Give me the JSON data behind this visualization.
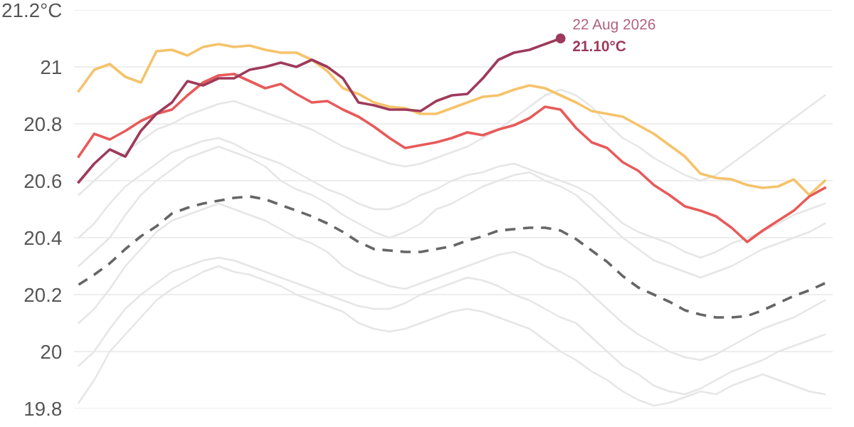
{
  "chart_data": {
    "type": "line",
    "categories": [
      null,
      null,
      null,
      null,
      null,
      null,
      null,
      null,
      null,
      null,
      null,
      null,
      null,
      null,
      null,
      null,
      null,
      null,
      null,
      null,
      null,
      null,
      null,
      null,
      null,
      null,
      null,
      null,
      null,
      null,
      null,
      null,
      null,
      null,
      null,
      null,
      null,
      null,
      null,
      null,
      null,
      null,
      null,
      null,
      null,
      null,
      null,
      null,
      null
    ],
    "series": [
      {
        "color": "#e6e6e6",
        "values": [
          20.55,
          20.6,
          20.65,
          20.7,
          20.74,
          20.78,
          20.8,
          20.83,
          20.85,
          20.87,
          20.88,
          20.86,
          20.84,
          20.82,
          20.8,
          20.78,
          20.75,
          20.72,
          20.7,
          20.68,
          20.66,
          20.65,
          20.66,
          20.68,
          20.7,
          20.72,
          20.75,
          20.78,
          20.82,
          20.86,
          20.9,
          20.92,
          20.9,
          20.86,
          20.8,
          20.75,
          20.72,
          20.68,
          20.65,
          20.62,
          20.6,
          20.62,
          20.66,
          20.7,
          20.74,
          20.78,
          20.82,
          20.86,
          20.9
        ]
      },
      {
        "color": "#e6e6e6",
        "values": [
          20.4,
          20.45,
          20.52,
          20.58,
          20.62,
          20.66,
          20.7,
          20.72,
          20.74,
          20.75,
          20.73,
          20.7,
          20.68,
          20.66,
          20.63,
          20.6,
          20.57,
          20.55,
          20.52,
          20.5,
          20.5,
          20.52,
          20.55,
          20.57,
          20.6,
          20.62,
          20.63,
          20.65,
          20.66,
          20.64,
          20.62,
          20.6,
          20.58,
          20.55,
          20.5,
          20.45,
          20.42,
          20.4,
          20.38,
          20.35,
          20.33,
          20.35,
          20.38,
          20.4,
          20.42,
          20.45,
          20.48,
          20.5,
          20.52
        ]
      },
      {
        "color": "#e6e6e6",
        "values": [
          20.3,
          20.35,
          20.4,
          20.48,
          20.55,
          20.6,
          20.64,
          20.68,
          20.7,
          20.72,
          20.7,
          20.68,
          20.65,
          20.6,
          20.57,
          20.55,
          20.52,
          20.48,
          20.45,
          20.42,
          20.4,
          20.42,
          20.45,
          20.5,
          20.52,
          20.55,
          20.58,
          20.6,
          20.62,
          20.63,
          20.6,
          20.58,
          20.55,
          20.5,
          20.45,
          20.4,
          20.36,
          20.32,
          20.3,
          20.28,
          20.26,
          20.28,
          20.3,
          20.33,
          20.36,
          20.38,
          20.4,
          20.42,
          20.45
        ]
      },
      {
        "color": "#e6e6e6",
        "values": [
          20.1,
          20.15,
          20.22,
          20.3,
          20.36,
          20.42,
          20.46,
          20.48,
          20.5,
          20.52,
          20.5,
          20.48,
          20.46,
          20.43,
          20.4,
          20.38,
          20.35,
          20.3,
          20.27,
          20.25,
          20.23,
          20.22,
          20.24,
          20.26,
          20.28,
          20.3,
          20.32,
          20.34,
          20.35,
          20.33,
          20.3,
          20.28,
          20.25,
          20.2,
          20.15,
          20.1,
          20.06,
          20.03,
          20.0,
          19.98,
          19.97,
          19.99,
          20.02,
          20.05,
          20.08,
          20.1,
          20.12,
          20.15,
          20.18
        ]
      },
      {
        "color": "#e6e6e6",
        "values": [
          19.95,
          20.0,
          20.08,
          20.15,
          20.2,
          20.24,
          20.28,
          20.3,
          20.32,
          20.33,
          20.32,
          20.3,
          20.28,
          20.26,
          20.24,
          20.22,
          20.2,
          20.18,
          20.16,
          20.15,
          20.15,
          20.17,
          20.2,
          20.22,
          20.24,
          20.26,
          20.25,
          20.23,
          20.2,
          20.18,
          20.15,
          20.12,
          20.1,
          20.05,
          20.0,
          19.95,
          19.92,
          19.88,
          19.86,
          19.85,
          19.87,
          19.9,
          19.93,
          19.95,
          19.97,
          20.0,
          20.02,
          20.04,
          20.06
        ]
      },
      {
        "color": "#e6e6e6",
        "values": [
          19.82,
          19.9,
          20.0,
          20.06,
          20.12,
          20.18,
          20.22,
          20.25,
          20.28,
          20.3,
          20.28,
          20.27,
          20.25,
          20.23,
          20.2,
          20.18,
          20.16,
          20.14,
          20.1,
          20.08,
          20.07,
          20.08,
          20.1,
          20.12,
          20.14,
          20.15,
          20.14,
          20.12,
          20.1,
          20.08,
          20.04,
          20.0,
          19.97,
          19.93,
          19.9,
          19.86,
          19.83,
          19.81,
          19.82,
          19.84,
          19.86,
          19.85,
          19.88,
          19.9,
          19.92,
          19.9,
          19.88,
          19.86,
          19.85
        ]
      },
      {
        "color": "#666666",
        "line_style": "dashed",
        "values": [
          20.235,
          20.27,
          20.31,
          20.36,
          20.405,
          20.44,
          20.485,
          20.505,
          20.52,
          20.53,
          20.54,
          20.545,
          20.535,
          20.515,
          20.495,
          20.475,
          20.45,
          20.42,
          20.385,
          20.36,
          20.355,
          20.35,
          20.35,
          20.36,
          20.37,
          20.39,
          20.405,
          20.425,
          20.43,
          20.435,
          20.435,
          20.425,
          20.395,
          20.355,
          20.315,
          20.265,
          20.225,
          20.2,
          20.175,
          20.145,
          20.13,
          20.12,
          20.12,
          20.125,
          20.145,
          20.17,
          20.195,
          20.215,
          20.24
        ]
      },
      {
        "color": "#f5c36b",
        "values": [
          20.915,
          20.99,
          21.01,
          20.965,
          20.945,
          21.055,
          21.06,
          21.04,
          21.07,
          21.08,
          21.07,
          21.075,
          21.06,
          21.05,
          21.05,
          21.025,
          20.985,
          20.925,
          20.905,
          20.875,
          20.86,
          20.855,
          20.835,
          20.835,
          20.855,
          20.875,
          20.895,
          20.9,
          20.92,
          20.935,
          20.925,
          20.9,
          20.875,
          20.845,
          20.835,
          20.825,
          20.795,
          20.765,
          20.725,
          20.685,
          20.625,
          20.61,
          20.605,
          20.585,
          20.575,
          20.58,
          20.605,
          20.55,
          20.6
        ]
      },
      {
        "color": "#e85a5a",
        "values": [
          20.685,
          20.765,
          20.745,
          20.775,
          20.81,
          20.835,
          20.85,
          20.9,
          20.945,
          20.97,
          20.975,
          20.95,
          20.925,
          20.94,
          20.905,
          20.875,
          20.88,
          20.85,
          20.825,
          20.79,
          20.75,
          20.715,
          20.725,
          20.735,
          20.75,
          20.77,
          20.76,
          20.78,
          20.795,
          20.82,
          20.86,
          20.85,
          20.785,
          20.735,
          20.715,
          20.665,
          20.635,
          20.585,
          20.55,
          20.51,
          20.495,
          20.475,
          20.435,
          20.385,
          20.425,
          20.46,
          20.495,
          20.545,
          20.575
        ]
      },
      {
        "color": "#9e3a5a",
        "values": [
          20.595,
          20.66,
          20.71,
          20.685,
          20.775,
          20.835,
          20.875,
          20.95,
          20.935,
          20.96,
          20.96,
          20.99,
          21.0,
          21.015,
          21.0,
          21.025,
          21.0,
          20.96,
          20.875,
          20.865,
          20.85,
          20.85,
          20.845,
          20.88,
          20.9,
          20.905,
          20.96,
          21.025,
          21.05,
          21.06,
          21.08,
          21.1,
          null,
          null,
          null,
          null,
          null,
          null,
          null,
          null,
          null,
          null,
          null,
          null,
          null,
          null,
          null,
          null,
          null
        ]
      }
    ],
    "ylim": [
      19.8,
      21.2
    ],
    "yticks": [
      19.8,
      20,
      20.2,
      20.4,
      20.6,
      20.8,
      21,
      {
        "value": 21.2,
        "label": "21.2°C"
      }
    ],
    "tick_labels": "y",
    "grid": "y",
    "annotations": [
      "22 Aug 2026",
      "21.10°C"
    ]
  }
}
